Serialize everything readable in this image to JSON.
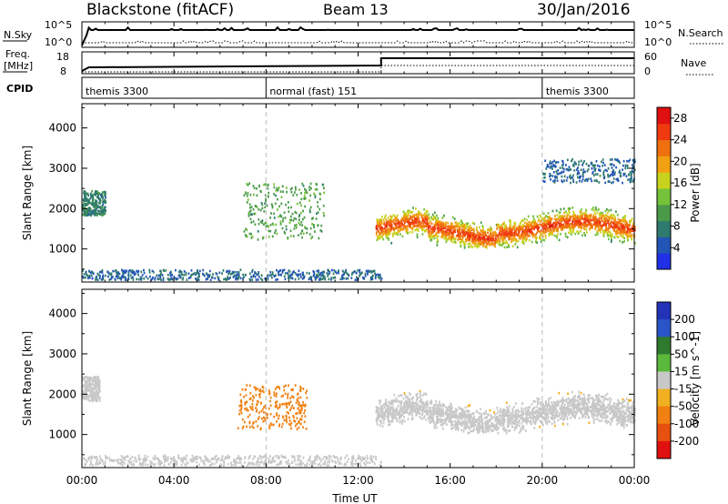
{
  "header": {
    "title": "Blackstone (fitACF)",
    "beam": "Beam 13",
    "date": "30/Jan/2016"
  },
  "panels": {
    "nsky": {
      "label": "N.Sky",
      "ticks": [
        "10^5",
        "10^0"
      ],
      "right_label": "N.Search",
      "right_ticks": [
        "10^5",
        "10^0"
      ]
    },
    "freq": {
      "label_line1": "Freq.",
      "label_line2": "[MHz]",
      "ticks": [
        "18",
        "8"
      ],
      "right_label": "Nave",
      "right_ticks": [
        "60",
        "0"
      ]
    },
    "cpid": {
      "label": "CPID",
      "segments": [
        {
          "start": "00:00",
          "end": "08:00",
          "label": "themis 3300"
        },
        {
          "start": "08:00",
          "end": "20:00",
          "label": "normal (fast) 151"
        },
        {
          "start": "20:00",
          "end": "24:00",
          "label": "themis 3300"
        }
      ]
    }
  },
  "chart_data": [
    {
      "type": "heatmap",
      "title": "",
      "quantity": "Power",
      "colorbar_label": "Power [dB]",
      "ylabel": "Slant Range [km]",
      "xlabel": "",
      "ylim": [
        180,
        4600
      ],
      "y_ticks": [
        1000,
        2000,
        3000,
        4000
      ],
      "colorbar_ticks": [
        4,
        8,
        12,
        16,
        20,
        24,
        28
      ],
      "colorbar_range": [
        0,
        30
      ],
      "colors": [
        "#1f30e6",
        "#2255b5",
        "#2e7a6e",
        "#4a9a4a",
        "#76c23a",
        "#c8d21e",
        "#f0a010",
        "#f07010",
        "#ef3a10",
        "#e01010"
      ],
      "features": [
        {
          "name": "near-range ground scatter band",
          "x_start": "00:00",
          "x_end": "13:00",
          "range_km": [
            200,
            450
          ],
          "power_db": 6
        },
        {
          "name": "early evening echoes",
          "x_start": "00:00",
          "x_end": "01:00",
          "range_km": [
            1800,
            2400
          ],
          "power_db": 8
        },
        {
          "name": "pre-midnight patch",
          "x_start": "07:00",
          "x_end": "10:30",
          "range_km": [
            1200,
            2600
          ],
          "power_db": 11
        },
        {
          "name": "main scatter band",
          "x_start": "12:45",
          "x_end": "24:00",
          "range_km": [
            1000,
            2000
          ],
          "power_db": 26
        },
        {
          "name": "post-midnight echoes",
          "x_start": "20:00",
          "x_end": "24:00",
          "range_km": [
            2600,
            3200
          ],
          "power_db": 6
        }
      ]
    },
    {
      "type": "heatmap",
      "title": "",
      "quantity": "Velocity",
      "colorbar_label": "Velocity [m s^-1]",
      "ylabel": "Slant Range [km]",
      "xlabel": "Time UT",
      "ylim": [
        180,
        4600
      ],
      "y_ticks": [
        1000,
        2000,
        3000,
        4000
      ],
      "colorbar_ticks": [
        200,
        100,
        50,
        15,
        -15,
        -50,
        -100,
        -200
      ],
      "colorbar_colors": [
        "#2233b8",
        "#2a55c8",
        "#2e7a2e",
        "#5ab83a",
        "#c8c8c8",
        "#f0b020",
        "#f08010",
        "#e85010",
        "#e01010"
      ],
      "features": [
        {
          "name": "ground scatter (low velocity)",
          "x_start": "00:00",
          "x_end": "13:00",
          "range_km": [
            200,
            450
          ],
          "velocity": 0
        },
        {
          "name": "early evening ground scatter",
          "x_start": "00:00",
          "x_end": "00:45",
          "range_km": [
            1800,
            2400
          ],
          "velocity": 0
        },
        {
          "name": "receding flow patch",
          "x_start": "06:45",
          "x_end": "09:45",
          "range_km": [
            1100,
            2200
          ],
          "velocity": -60
        },
        {
          "name": "main ground scatter band",
          "x_start": "12:45",
          "x_end": "24:00",
          "range_km": [
            1000,
            2100
          ],
          "velocity": 0
        }
      ]
    }
  ],
  "time_axis": {
    "label": "Time UT",
    "ticks": [
      "00:00",
      "04:00",
      "08:00",
      "12:00",
      "16:00",
      "20:00",
      "00:00"
    ]
  }
}
